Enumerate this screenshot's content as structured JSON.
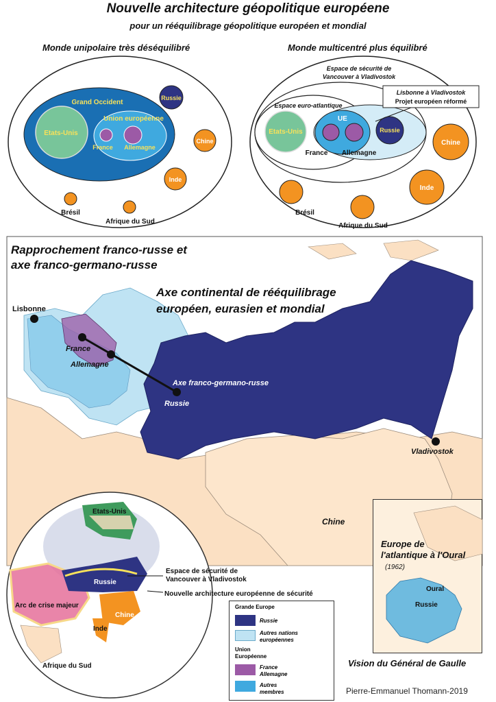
{
  "header": {
    "title": "Nouvelle architecture géopolitique européene",
    "subtitle": "pour un rééquilibrage géopolitique européen et mondial"
  },
  "unipolar": {
    "title": "Monde unipolaire très déséquilibré",
    "grand_occident": "Grand Occident",
    "union_europeenne": "Union européenne",
    "etats_unis": "Etats-Unis",
    "france": "France",
    "allemagne": "Allemagne",
    "russie": "Russie",
    "chine": "Chine",
    "inde": "Inde",
    "bresil": "Brésil",
    "afrique_du_sud": "Afrique du Sud"
  },
  "multicentre": {
    "title": "Monde multicentré plus équilibré",
    "espace_securite_line1": "Espace de sécurité de",
    "espace_securite_line2": "Vancouver à Vladivostok",
    "lisbonne_line1": "Lisbonne à Vladivostok",
    "lisbonne_line2": "Projet européen réformé",
    "euro_atlantique": "Espace euro-atlantique",
    "etats_unis": "Etats-Unis",
    "ue": "UE",
    "russie": "Russie",
    "france": "France",
    "allemagne": "Allemagne",
    "chine": "Chine",
    "inde": "Inde",
    "bresil": "Brésil",
    "afrique_du_sud": "Afrique du Sud"
  },
  "map": {
    "title_line1": "Rapprochement franco-russe et",
    "title_line2": "axe franco-germano-russe",
    "axis_line1": "Axe continental de rééquilibrage",
    "axis_line2": "européen, eurasien  et mondial",
    "lisbonne": "Lisbonne",
    "france": "France",
    "allemagne": "Allemagne",
    "axe_label": "Axe franco-germano-russe",
    "russie": "Russie",
    "vladivostok": "Vladivostok",
    "chine": "Chine"
  },
  "globe": {
    "etats_unis": "Etats-Unis",
    "russie": "Russie",
    "chine": "Chine",
    "inde": "Inde",
    "arc_crise": "Arc de crise majeur",
    "afrique_du_sud": "Afrique du Sud",
    "espace_securite_line1": "Espace de sécurité de",
    "espace_securite_line2": "Vancouver à Vladivostok",
    "nouvelle_architecture": "Nouvelle architecture européenne de sécurité"
  },
  "legend": {
    "grande_europe": "Grande Europe",
    "russie": "Russie",
    "autres_nations_line1": "Autres nations",
    "autres_nations_line2": "européennes",
    "union_line1": "Union",
    "union_line2": "Européenne",
    "france_allemagne_line1": "France",
    "france_allemagne_line2": "Allemagne",
    "autres_membres_line1": "Autres",
    "autres_membres_line2": "membres"
  },
  "inset": {
    "title_line1": "Europe de",
    "title_line2": "l'atlantique à l'Oural",
    "year": "(1962)",
    "oural": "Oural",
    "russie": "Russie",
    "caption": "Vision du Général de Gaulle"
  },
  "credit": "Pierre-Emmanuel Thomann-2019",
  "colors": {
    "russia": "#2e3483",
    "europe_light": "#bfe3f3",
    "eu_blue": "#3fa9df",
    "france_germany": "#9c5aa6",
    "occident_blue": "#1a6fb3",
    "green": "#78c59a",
    "orange": "#f39321",
    "china_beige": "#fbe0c3",
    "crisis_pink": "#e5709a",
    "usa_green": "#3f9b5d"
  }
}
